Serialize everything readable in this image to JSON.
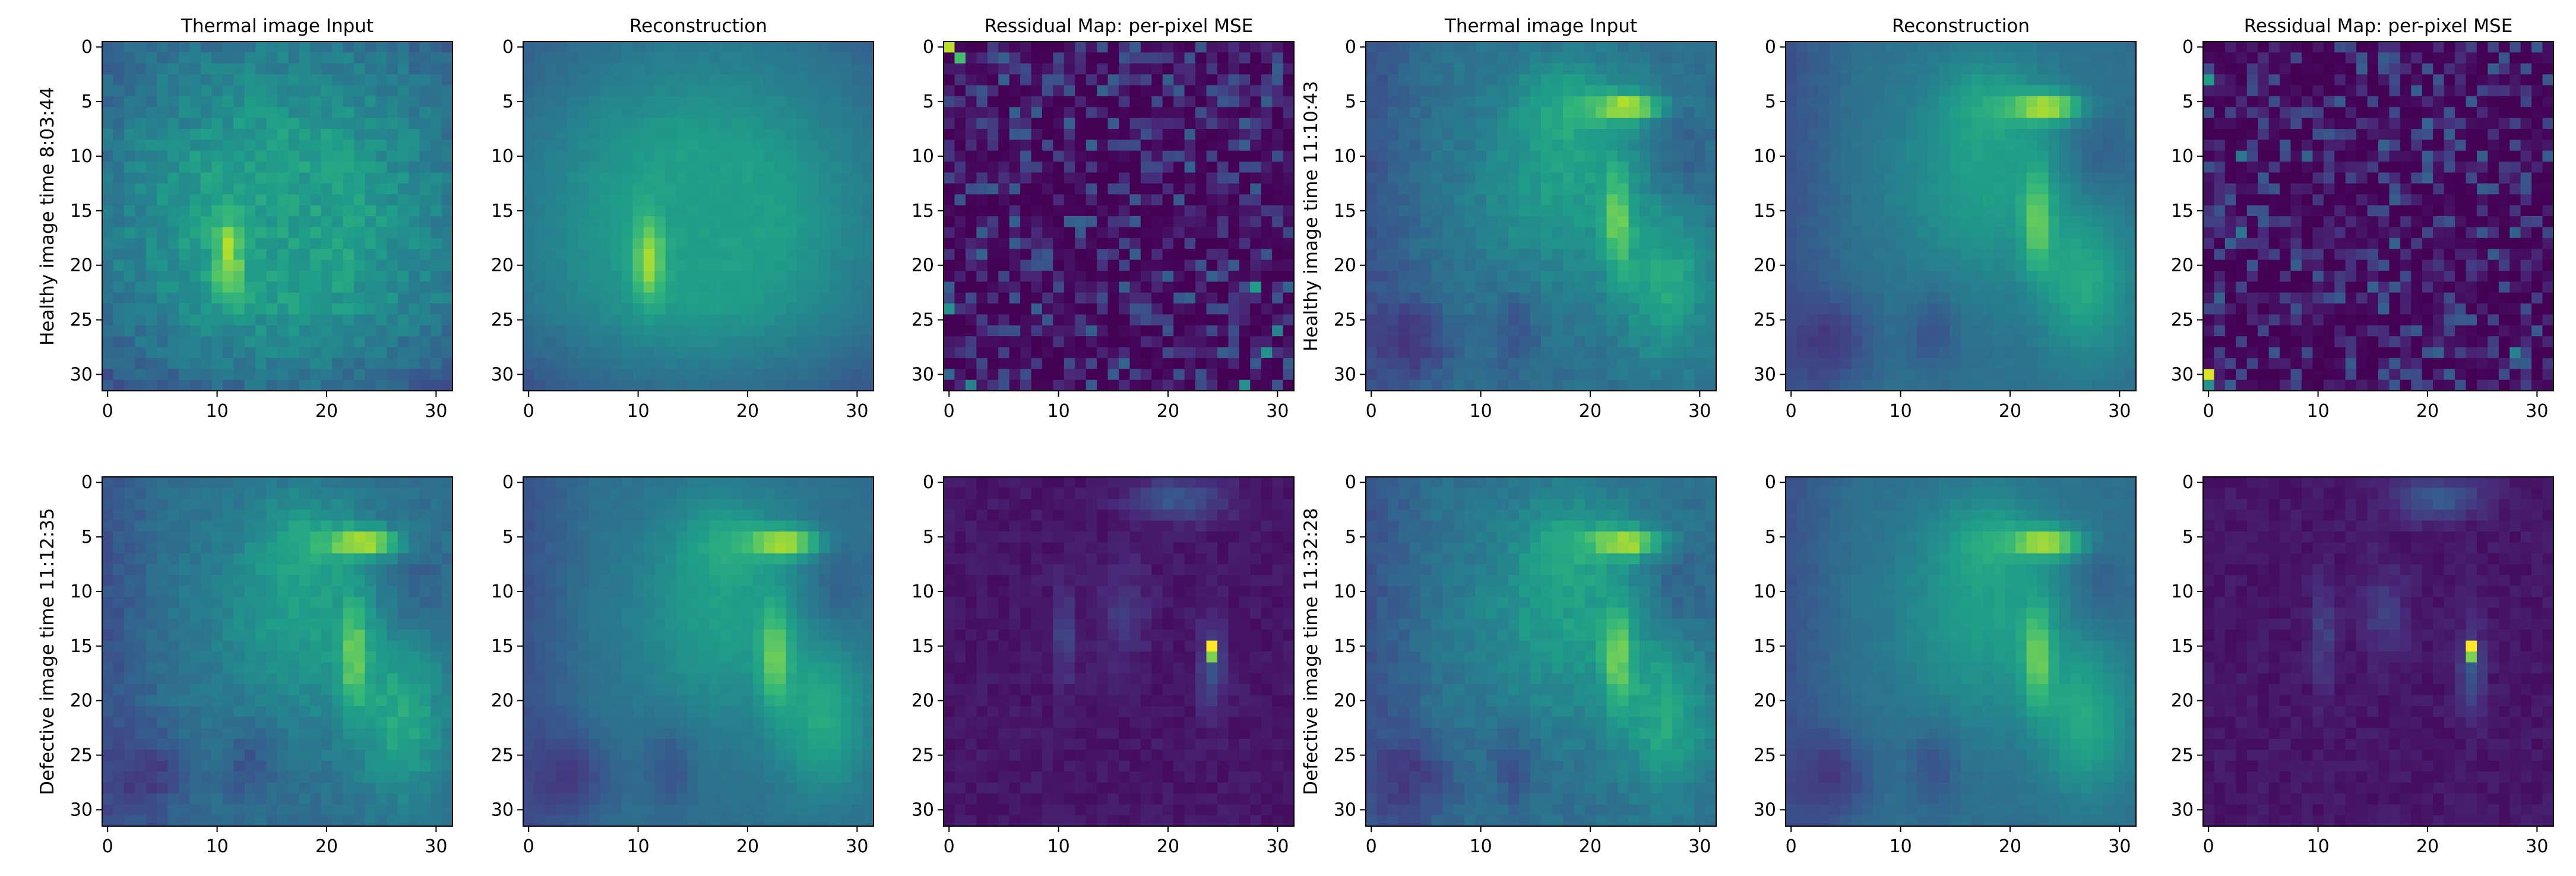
{
  "figure": {
    "colormap": "viridis",
    "colormap_stops": [
      "#440154",
      "#482878",
      "#3e4989",
      "#31688e",
      "#26828e",
      "#1f9e89",
      "#35b779",
      "#6ece58",
      "#b5de2b",
      "#fde725"
    ]
  },
  "chart_data": [
    {
      "type": "heatmap",
      "title": "Thermal image Input",
      "ylabel": "Healthy image time 8:03:44",
      "pattern": "healthy_a",
      "kind": "input",
      "grid_size": 32,
      "xticks": [
        "0",
        "10",
        "20",
        "30"
      ],
      "yticks": [
        "0",
        "5",
        "10",
        "15",
        "20",
        "25",
        "30"
      ]
    },
    {
      "type": "heatmap",
      "title": "Reconstruction",
      "ylabel": "",
      "pattern": "healthy_a",
      "kind": "recon",
      "grid_size": 32,
      "xticks": [
        "0",
        "10",
        "20",
        "30"
      ],
      "yticks": [
        "0",
        "5",
        "10",
        "15",
        "20",
        "25",
        "30"
      ]
    },
    {
      "type": "heatmap",
      "title": "Ressidual Map: per-pixel MSE",
      "ylabel": "",
      "pattern": "noise",
      "kind": "residual",
      "grid_size": 32,
      "hot_pixels": [
        [
          0,
          0,
          0.9
        ],
        [
          1,
          1,
          0.7
        ],
        [
          22,
          28,
          0.55
        ],
        [
          24,
          0,
          0.5
        ],
        [
          28,
          29,
          0.5
        ],
        [
          31,
          27,
          0.5
        ],
        [
          26,
          30,
          0.45
        ],
        [
          31,
          2,
          0.45
        ]
      ],
      "xticks": [
        "0",
        "10",
        "20",
        "30"
      ],
      "yticks": [
        "0",
        "5",
        "10",
        "15",
        "20",
        "25",
        "30"
      ]
    },
    {
      "type": "heatmap",
      "title": "Thermal image Input",
      "ylabel": "Healthy image time 11:10:43",
      "pattern": "scene",
      "kind": "input",
      "grid_size": 32,
      "xticks": [
        "0",
        "10",
        "20",
        "30"
      ],
      "yticks": [
        "0",
        "5",
        "10",
        "15",
        "20",
        "25",
        "30"
      ]
    },
    {
      "type": "heatmap",
      "title": "Reconstruction",
      "ylabel": "",
      "pattern": "scene",
      "kind": "recon",
      "grid_size": 32,
      "xticks": [
        "0",
        "10",
        "20",
        "30"
      ],
      "yticks": [
        "0",
        "5",
        "10",
        "15",
        "20",
        "25",
        "30"
      ]
    },
    {
      "type": "heatmap",
      "title": "Ressidual Map: per-pixel MSE",
      "ylabel": "",
      "pattern": "noise",
      "kind": "residual",
      "grid_size": 32,
      "hot_pixels": [
        [
          30,
          0,
          0.95
        ],
        [
          3,
          0,
          0.55
        ],
        [
          31,
          0,
          0.5
        ],
        [
          28,
          28,
          0.45
        ],
        [
          10,
          3,
          0.4
        ],
        [
          17,
          3,
          0.4
        ]
      ],
      "xticks": [
        "0",
        "10",
        "20",
        "30"
      ],
      "yticks": [
        "0",
        "5",
        "10",
        "15",
        "20",
        "25",
        "30"
      ]
    },
    {
      "type": "heatmap",
      "title": "",
      "ylabel": "Defective image time 11:12:35",
      "pattern": "scene",
      "kind": "input",
      "grid_size": 32,
      "xticks": [
        "0",
        "10",
        "20",
        "30"
      ],
      "yticks": [
        "0",
        "5",
        "10",
        "15",
        "20",
        "25",
        "30"
      ]
    },
    {
      "type": "heatmap",
      "title": "",
      "ylabel": "",
      "pattern": "scene",
      "kind": "recon",
      "grid_size": 32,
      "xticks": [
        "0",
        "10",
        "20",
        "30"
      ],
      "yticks": [
        "0",
        "5",
        "10",
        "15",
        "20",
        "25",
        "30"
      ]
    },
    {
      "type": "heatmap",
      "title": "",
      "ylabel": "",
      "pattern": "defect_residual",
      "kind": "residual",
      "grid_size": 32,
      "hotspot": {
        "row": 15,
        "col": 24,
        "value": 1.0
      },
      "xticks": [
        "0",
        "10",
        "20",
        "30"
      ],
      "yticks": [
        "0",
        "5",
        "10",
        "15",
        "20",
        "25",
        "30"
      ]
    },
    {
      "type": "heatmap",
      "title": "",
      "ylabel": "Defective image time 11:32:28",
      "pattern": "scene",
      "kind": "input",
      "grid_size": 32,
      "xticks": [
        "0",
        "10",
        "20",
        "30"
      ],
      "yticks": [
        "0",
        "5",
        "10",
        "15",
        "20",
        "25",
        "30"
      ]
    },
    {
      "type": "heatmap",
      "title": "",
      "ylabel": "",
      "pattern": "scene",
      "kind": "recon",
      "grid_size": 32,
      "xticks": [
        "0",
        "10",
        "20",
        "30"
      ],
      "yticks": [
        "0",
        "5",
        "10",
        "15",
        "20",
        "25",
        "30"
      ]
    },
    {
      "type": "heatmap",
      "title": "",
      "ylabel": "",
      "pattern": "defect_residual",
      "kind": "residual",
      "grid_size": 32,
      "hotspot": {
        "row": 15,
        "col": 24,
        "value": 1.0
      },
      "xticks": [
        "0",
        "10",
        "20",
        "30"
      ],
      "yticks": [
        "0",
        "5",
        "10",
        "15",
        "20",
        "25",
        "30"
      ]
    }
  ]
}
